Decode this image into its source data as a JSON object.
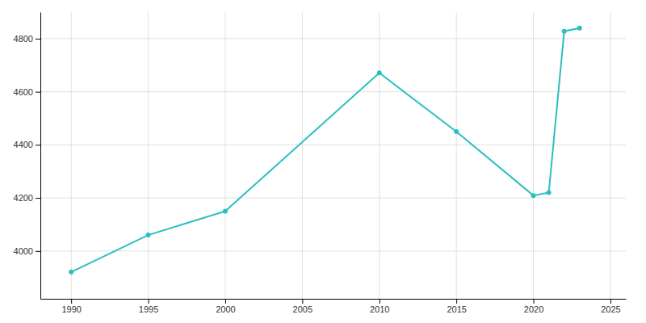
{
  "chart_data": {
    "type": "line",
    "x": [
      1990,
      1995,
      2000,
      2010,
      2015,
      2020,
      2021,
      2022,
      2023
    ],
    "values": [
      3921,
      4060,
      4150,
      4671,
      4450,
      4209,
      4220,
      4828,
      4840
    ],
    "color": "#2bbfbf",
    "marker": "circle",
    "xlim": [
      1988,
      2026
    ],
    "ylim": [
      3820,
      4900
    ],
    "xticks": [
      1990,
      1995,
      2000,
      2005,
      2010,
      2015,
      2020,
      2025
    ],
    "yticks": [
      4000,
      4200,
      4400,
      4600,
      4800
    ],
    "grid": true
  }
}
